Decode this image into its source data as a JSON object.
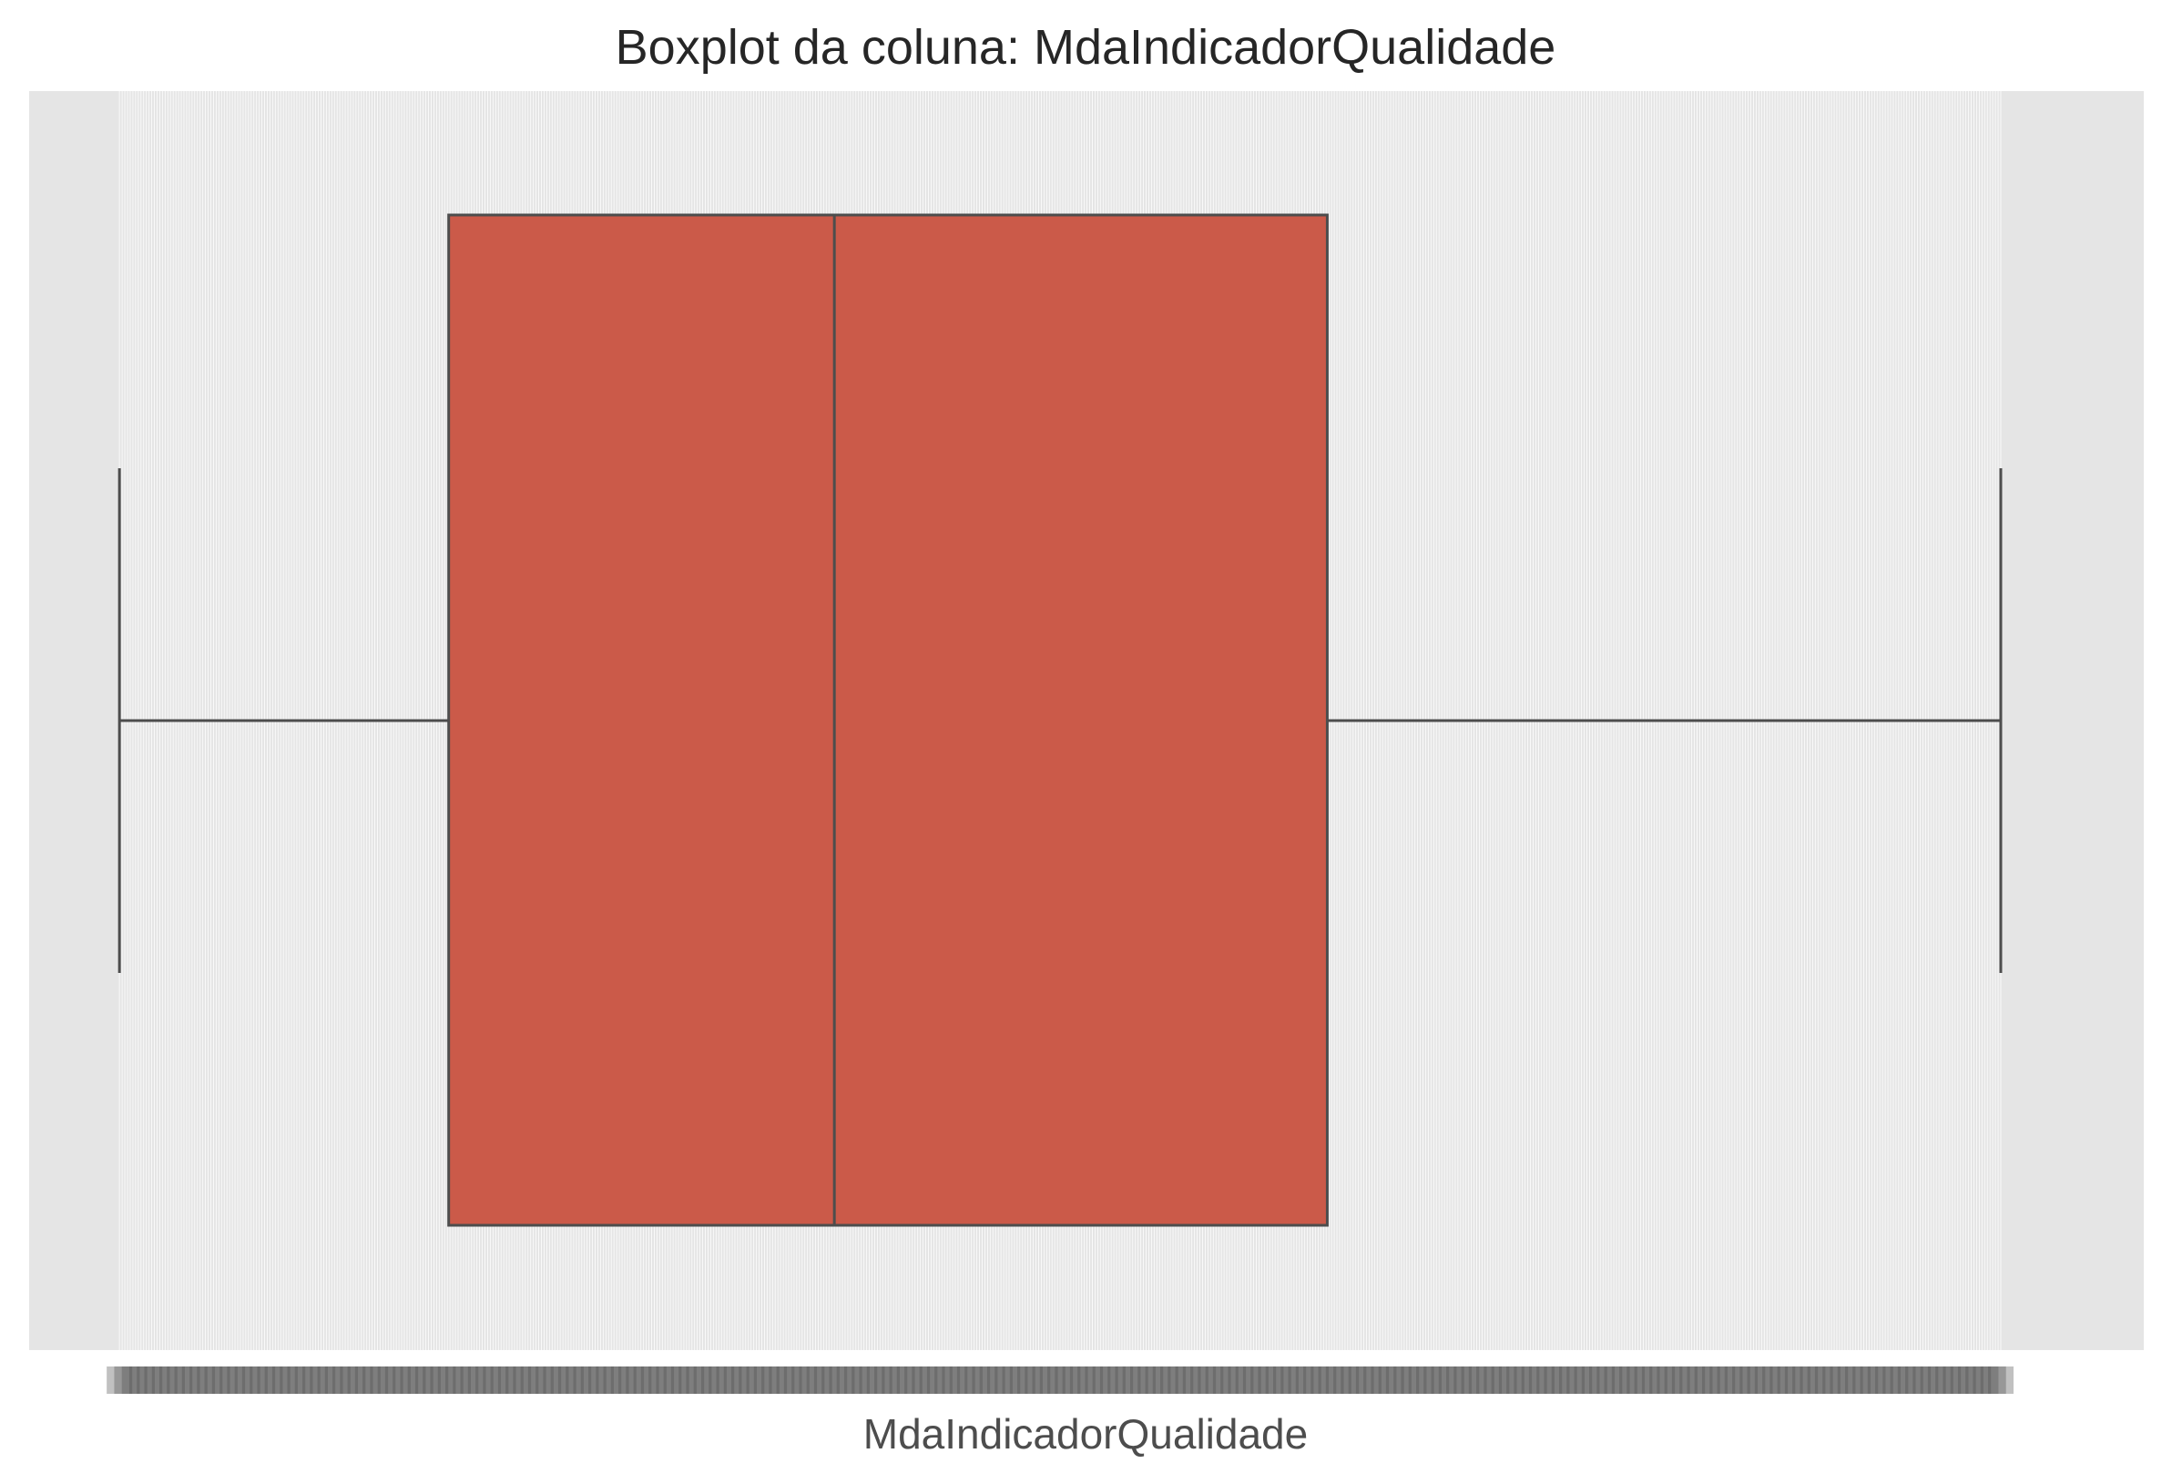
{
  "chart_data": {
    "type": "boxplot",
    "title": "Boxplot da coluna: MdaIndicadorQualidade",
    "xlabel": "MdaIndicadorQualidade",
    "ylabel": "",
    "x_axis": "categorical (overlapping tick labels, unreadable)",
    "box": {
      "whisker_low": 0,
      "q1": 175,
      "median": 380,
      "q3": 642,
      "whisker_high": 1000
    },
    "xlim": [
      -48,
      1076
    ],
    "grid": true,
    "colors": {
      "box_fill": "#cb5a49",
      "line": "#4d4d4d",
      "background": "#e5e5e5",
      "gridline": "#ffffff"
    }
  }
}
